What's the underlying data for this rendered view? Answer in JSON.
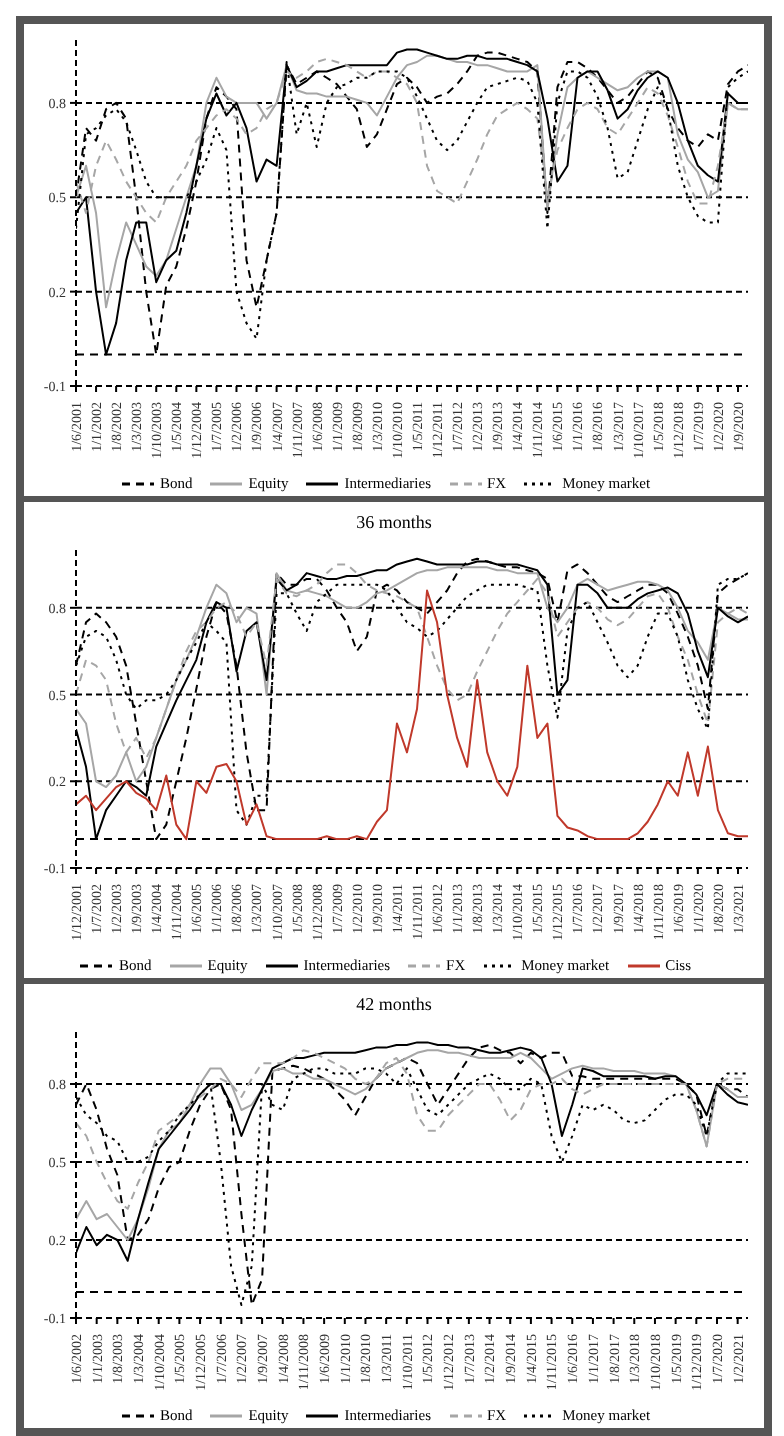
{
  "chart_data": [
    {
      "type": "line",
      "marker": "none",
      "grid": "y",
      "legend": "bottom",
      "ylim": [
        -0.1,
        1.0
      ],
      "yticks": [
        -0.1,
        0.2,
        0.5,
        0.8
      ],
      "ref_lines": [
        {
          "axis": "y",
          "value": 0
        }
      ],
      "categories": [
        "1/6/2001",
        null,
        "1/1/2002",
        null,
        "1/8/2002",
        null,
        "1/3/2003",
        null,
        "1/10/2003",
        null,
        "1/5/2004",
        null,
        "1/12/2004",
        null,
        "1/7/2005",
        null,
        "1/2/2006",
        null,
        "1/9/2006",
        null,
        "1/4/2007",
        null,
        "1/11/2007",
        null,
        "1/6/2008",
        null,
        "1/1/2009",
        null,
        "1/8/2009",
        null,
        "1/3/2010",
        null,
        "1/10/2010",
        null,
        "1/5/2011",
        null,
        "1/12/2011",
        null,
        "1/7/2012",
        null,
        "1/2/2013",
        null,
        "1/9/2013",
        null,
        "1/4/2014",
        null,
        "1/11/2014",
        null,
        "1/6/2015",
        null,
        "1/1/2016",
        null,
        "1/8/2016",
        null,
        "1/3/2017",
        null,
        "1/10/2017",
        null,
        "1/5/2018",
        null,
        "1/12/2018",
        null,
        "1/7/2019",
        null,
        "1/2/2020",
        null,
        "1/9/2020",
        null
      ],
      "series": [
        {
          "name": "Bond",
          "color": "#000000",
          "line_style": "dashed",
          "values": [
            0.5,
            0.72,
            0.68,
            0.78,
            0.8,
            0.75,
            0.5,
            0.2,
            0.0,
            0.22,
            0.28,
            0.4,
            0.55,
            0.75,
            0.85,
            0.82,
            0.78,
            0.3,
            0.15,
            0.3,
            0.45,
            0.92,
            0.86,
            0.88,
            0.9,
            0.88,
            0.86,
            0.82,
            0.78,
            0.66,
            0.7,
            0.78,
            0.86,
            0.88,
            0.85,
            0.8,
            0.82,
            0.83,
            0.86,
            0.9,
            0.95,
            0.96,
            0.96,
            0.95,
            0.94,
            0.93,
            0.9,
            0.45,
            0.85,
            0.93,
            0.93,
            0.91,
            0.88,
            0.84,
            0.8,
            0.82,
            0.86,
            0.9,
            0.88,
            0.78,
            0.72,
            0.68,
            0.66,
            0.7,
            0.68,
            0.86,
            0.9,
            0.92
          ]
        },
        {
          "name": "Equity",
          "color": "#a6a6a6",
          "line_style": "solid",
          "values": [
            0.5,
            0.6,
            0.45,
            0.15,
            0.3,
            0.42,
            0.35,
            0.28,
            0.25,
            0.3,
            0.4,
            0.5,
            0.6,
            0.8,
            0.88,
            0.82,
            0.8,
            0.8,
            0.8,
            0.75,
            0.8,
            0.92,
            0.84,
            0.83,
            0.83,
            0.82,
            0.82,
            0.82,
            0.81,
            0.8,
            0.76,
            0.82,
            0.88,
            0.92,
            0.93,
            0.95,
            0.95,
            0.94,
            0.93,
            0.93,
            0.92,
            0.92,
            0.91,
            0.9,
            0.9,
            0.9,
            0.92,
            0.46,
            0.7,
            0.85,
            0.88,
            0.9,
            0.88,
            0.86,
            0.84,
            0.85,
            0.88,
            0.9,
            0.9,
            0.88,
            0.7,
            0.62,
            0.58,
            0.5,
            0.52,
            0.8,
            0.78,
            0.78
          ]
        },
        {
          "name": "Intermediaries",
          "color": "#000000",
          "line_style": "solid",
          "values": [
            0.45,
            0.5,
            0.2,
            0.0,
            0.1,
            0.3,
            0.42,
            0.42,
            0.23,
            0.3,
            0.33,
            0.45,
            0.6,
            0.75,
            0.83,
            0.76,
            0.8,
            0.72,
            0.55,
            0.62,
            0.6,
            0.92,
            0.85,
            0.87,
            0.9,
            0.9,
            0.91,
            0.92,
            0.92,
            0.92,
            0.92,
            0.92,
            0.96,
            0.97,
            0.97,
            0.96,
            0.95,
            0.94,
            0.94,
            0.95,
            0.95,
            0.94,
            0.94,
            0.94,
            0.93,
            0.92,
            0.9,
            0.75,
            0.55,
            0.6,
            0.88,
            0.9,
            0.9,
            0.84,
            0.75,
            0.78,
            0.84,
            0.88,
            0.9,
            0.88,
            0.8,
            0.68,
            0.6,
            0.57,
            0.55,
            0.83,
            0.8,
            0.8
          ]
        },
        {
          "name": "FX",
          "color": "#a6a6a6",
          "line_style": "dashed",
          "values": [
            0.55,
            0.45,
            0.6,
            0.68,
            0.62,
            0.55,
            0.5,
            0.45,
            0.42,
            0.5,
            0.55,
            0.6,
            0.68,
            0.72,
            0.76,
            0.78,
            0.75,
            0.7,
            0.72,
            0.78,
            0.8,
            0.9,
            0.88,
            0.9,
            0.93,
            0.94,
            0.93,
            0.92,
            0.9,
            0.88,
            0.9,
            0.9,
            0.88,
            0.86,
            0.8,
            0.6,
            0.52,
            0.5,
            0.48,
            0.55,
            0.62,
            0.7,
            0.76,
            0.78,
            0.8,
            0.78,
            0.75,
            0.5,
            0.65,
            0.72,
            0.78,
            0.8,
            0.78,
            0.72,
            0.7,
            0.75,
            0.8,
            0.85,
            0.83,
            0.76,
            0.66,
            0.55,
            0.48,
            0.48,
            0.6,
            0.8,
            0.78,
            0.78
          ]
        },
        {
          "name": "Money market",
          "color": "#000000",
          "line_style": "dotted",
          "values": [
            0.4,
            0.7,
            0.72,
            0.76,
            0.78,
            0.74,
            0.65,
            0.55,
            0.5,
            0.5,
            0.5,
            0.5,
            0.55,
            0.62,
            0.72,
            0.65,
            0.2,
            0.1,
            0.05,
            0.3,
            0.45,
            0.93,
            0.7,
            0.8,
            0.66,
            0.8,
            0.85,
            0.86,
            0.88,
            0.88,
            0.9,
            0.9,
            0.9,
            0.88,
            0.82,
            0.75,
            0.68,
            0.65,
            0.68,
            0.74,
            0.8,
            0.85,
            0.86,
            0.87,
            0.88,
            0.87,
            0.8,
            0.4,
            0.8,
            0.9,
            0.9,
            0.88,
            0.82,
            0.72,
            0.56,
            0.58,
            0.68,
            0.78,
            0.85,
            0.78,
            0.6,
            0.5,
            0.44,
            0.42,
            0.42,
            0.85,
            0.88,
            0.9
          ]
        }
      ]
    },
    {
      "type": "line",
      "title": "36 months",
      "marker": "none",
      "grid": "y",
      "legend": "bottom",
      "ylim": [
        -0.1,
        1.0
      ],
      "yticks": [
        -0.1,
        0.2,
        0.5,
        0.8
      ],
      "ref_lines": [
        {
          "axis": "y",
          "value": 0
        }
      ],
      "categories": [
        "1/12/2001",
        null,
        "1/7/2002",
        null,
        "1/2/2003",
        null,
        "1/9/2003",
        null,
        "1/4/2004",
        null,
        "1/11/2004",
        null,
        "1/6/2005",
        null,
        "1/1/2006",
        null,
        "1/8/2006",
        null,
        "1/3/2007",
        null,
        "1/10/2007",
        null,
        "1/5/2008",
        null,
        "1/12/2008",
        null,
        "1/7/2009",
        null,
        "1/2/2010",
        null,
        "1/9/2010",
        null,
        "1/4/2011",
        null,
        "1/11/2011",
        null,
        "1/6/2012",
        null,
        "1/1/2013",
        null,
        "1/8/2013",
        null,
        "1/3/2014",
        null,
        "1/10/2014",
        null,
        "1/5/2015",
        null,
        "1/12/2015",
        null,
        "1/7/2016",
        null,
        "1/2/2017",
        null,
        "1/9/2017",
        null,
        "1/4/2018",
        null,
        "1/11/2018",
        null,
        "1/6/2019",
        null,
        "1/1/2020",
        null,
        "1/8/2020",
        null,
        "1/3/2021",
        null
      ],
      "series": [
        {
          "name": "Bond",
          "color": "#000000",
          "line_style": "dashed",
          "values": [
            0.6,
            0.75,
            0.78,
            0.75,
            0.7,
            0.6,
            0.4,
            0.2,
            0.0,
            0.05,
            0.2,
            0.35,
            0.52,
            0.7,
            0.82,
            0.78,
            0.6,
            0.3,
            0.1,
            0.1,
            0.92,
            0.88,
            0.88,
            0.9,
            0.9,
            0.86,
            0.8,
            0.75,
            0.65,
            0.7,
            0.86,
            0.88,
            0.86,
            0.82,
            0.8,
            0.78,
            0.82,
            0.86,
            0.92,
            0.96,
            0.97,
            0.96,
            0.95,
            0.94,
            0.94,
            0.93,
            0.92,
            0.9,
            0.75,
            0.93,
            0.95,
            0.92,
            0.88,
            0.84,
            0.82,
            0.84,
            0.86,
            0.88,
            0.88,
            0.85,
            0.78,
            0.7,
            0.6,
            0.45,
            0.85,
            0.88,
            0.9,
            0.92
          ]
        },
        {
          "name": "Equity",
          "color": "#a6a6a6",
          "line_style": "solid",
          "values": [
            0.45,
            0.4,
            0.2,
            0.18,
            0.22,
            0.3,
            0.2,
            0.25,
            0.35,
            0.45,
            0.55,
            0.62,
            0.7,
            0.8,
            0.88,
            0.85,
            0.75,
            0.8,
            0.78,
            0.5,
            0.92,
            0.86,
            0.85,
            0.86,
            0.85,
            0.84,
            0.82,
            0.8,
            0.8,
            0.82,
            0.85,
            0.86,
            0.88,
            0.9,
            0.92,
            0.93,
            0.93,
            0.94,
            0.94,
            0.94,
            0.94,
            0.94,
            0.93,
            0.93,
            0.92,
            0.92,
            0.92,
            0.8,
            0.75,
            0.8,
            0.88,
            0.9,
            0.88,
            0.86,
            0.87,
            0.88,
            0.89,
            0.89,
            0.88,
            0.86,
            0.8,
            0.72,
            0.68,
            0.62,
            0.8,
            0.78,
            0.76,
            0.76
          ]
        },
        {
          "name": "Intermediaries",
          "color": "#000000",
          "line_style": "solid",
          "values": [
            0.38,
            0.25,
            0.0,
            0.1,
            0.15,
            0.2,
            0.18,
            0.15,
            0.32,
            0.4,
            0.48,
            0.55,
            0.62,
            0.75,
            0.82,
            0.8,
            0.58,
            0.72,
            0.75,
            0.55,
            0.9,
            0.86,
            0.88,
            0.92,
            0.91,
            0.9,
            0.9,
            0.91,
            0.91,
            0.92,
            0.93,
            0.93,
            0.95,
            0.96,
            0.97,
            0.96,
            0.95,
            0.95,
            0.95,
            0.95,
            0.96,
            0.96,
            0.95,
            0.95,
            0.95,
            0.94,
            0.93,
            0.88,
            0.5,
            0.55,
            0.88,
            0.88,
            0.85,
            0.8,
            0.8,
            0.8,
            0.83,
            0.85,
            0.86,
            0.87,
            0.85,
            0.78,
            0.65,
            0.56,
            0.8,
            0.77,
            0.75,
            0.77
          ]
        },
        {
          "name": "FX",
          "color": "#a6a6a6",
          "line_style": "dashed",
          "values": [
            0.5,
            0.62,
            0.6,
            0.55,
            0.4,
            0.3,
            0.35,
            0.28,
            0.35,
            0.45,
            0.55,
            0.65,
            0.72,
            0.75,
            0.8,
            0.82,
            0.78,
            0.7,
            0.75,
            0.6,
            0.9,
            0.85,
            0.84,
            0.86,
            0.88,
            0.92,
            0.95,
            0.95,
            0.92,
            0.88,
            0.86,
            0.85,
            0.84,
            0.82,
            0.8,
            0.7,
            0.6,
            0.52,
            0.48,
            0.5,
            0.58,
            0.65,
            0.72,
            0.78,
            0.82,
            0.86,
            0.9,
            0.85,
            0.7,
            0.75,
            0.8,
            0.82,
            0.8,
            0.76,
            0.74,
            0.76,
            0.8,
            0.84,
            0.85,
            0.8,
            0.7,
            0.62,
            0.5,
            0.4,
            0.75,
            0.78,
            0.8,
            0.78
          ]
        },
        {
          "name": "Money market",
          "color": "#000000",
          "line_style": "dotted",
          "values": [
            0.6,
            0.7,
            0.72,
            0.7,
            0.62,
            0.5,
            0.45,
            0.48,
            0.48,
            0.5,
            0.55,
            0.62,
            0.68,
            0.75,
            0.72,
            0.68,
            0.1,
            0.05,
            0.15,
            0.15,
            0.85,
            0.85,
            0.78,
            0.72,
            0.82,
            0.85,
            0.88,
            0.88,
            0.88,
            0.88,
            0.88,
            0.86,
            0.8,
            0.75,
            0.73,
            0.7,
            0.72,
            0.76,
            0.8,
            0.84,
            0.86,
            0.88,
            0.88,
            0.88,
            0.88,
            0.87,
            0.86,
            0.6,
            0.42,
            0.72,
            0.8,
            0.82,
            0.75,
            0.68,
            0.6,
            0.56,
            0.6,
            0.7,
            0.78,
            0.78,
            0.7,
            0.55,
            0.45,
            0.38,
            0.88,
            0.9,
            0.9,
            0.92
          ]
        },
        {
          "name": "Ciss",
          "color": "#c0392b",
          "line_style": "solid",
          "values": [
            0.12,
            0.15,
            0.1,
            0.14,
            0.18,
            0.2,
            0.16,
            0.14,
            0.1,
            0.22,
            0.05,
            0.0,
            0.2,
            0.16,
            0.25,
            0.26,
            0.2,
            0.05,
            0.12,
            0.01,
            0.0,
            0.0,
            0.0,
            0.0,
            0.0,
            0.01,
            0.0,
            0.0,
            0.01,
            0.0,
            0.06,
            0.1,
            0.4,
            0.3,
            0.45,
            0.86,
            0.75,
            0.5,
            0.35,
            0.25,
            0.55,
            0.3,
            0.2,
            0.15,
            0.25,
            0.6,
            0.35,
            0.4,
            0.08,
            0.04,
            0.03,
            0.01,
            0.0,
            0.0,
            0.0,
            0.0,
            0.02,
            0.06,
            0.12,
            0.2,
            0.15,
            0.3,
            0.15,
            0.32,
            0.1,
            0.02,
            0.01,
            0.01
          ]
        }
      ]
    },
    {
      "type": "line",
      "title": "42 months",
      "marker": "none",
      "grid": "y",
      "legend": "bottom",
      "ylim": [
        -0.1,
        1.0
      ],
      "yticks": [
        -0.1,
        0.2,
        0.5,
        0.8
      ],
      "ref_lines": [
        {
          "axis": "y",
          "value": 0
        }
      ],
      "categories": [
        "1/6/2002",
        null,
        "1/1/2003",
        null,
        "1/8/2003",
        null,
        "1/3/2004",
        null,
        "1/10/2004",
        null,
        "1/5/2005",
        null,
        "1/12/2005",
        null,
        "1/7/2006",
        null,
        "1/2/2007",
        null,
        "1/9/2007",
        null,
        "1/4/2008",
        null,
        "1/11/2008",
        null,
        "1/6/2009",
        null,
        "1/1/2010",
        null,
        "1/8/2010",
        null,
        "1/3/2011",
        null,
        "1/10/2011",
        null,
        "1/5/2012",
        null,
        "1/12/2012",
        null,
        "1/7/2013",
        null,
        "1/2/2014",
        null,
        "1/9/2014",
        null,
        "1/4/2015",
        null,
        "1/11/2015",
        null,
        "1/6/2016",
        null,
        "1/1/2017",
        null,
        "1/8/2017",
        null,
        "1/3/2018",
        null,
        "1/10/2018",
        null,
        "1/5/2019",
        null,
        "1/12/2019",
        null,
        "1/7/2020",
        null,
        "1/2/2021",
        null
      ],
      "series": [
        {
          "name": "Bond",
          "color": "#000000",
          "line_style": "dashed",
          "values": [
            0.72,
            0.8,
            0.7,
            0.55,
            0.45,
            0.2,
            0.22,
            0.28,
            0.4,
            0.48,
            0.5,
            0.62,
            0.72,
            0.78,
            0.8,
            0.7,
            0.3,
            -0.05,
            0.05,
            0.85,
            0.86,
            0.87,
            0.86,
            0.84,
            0.82,
            0.78,
            0.74,
            0.68,
            0.75,
            0.82,
            0.86,
            0.88,
            0.9,
            0.88,
            0.8,
            0.72,
            0.78,
            0.84,
            0.9,
            0.94,
            0.95,
            0.93,
            0.92,
            0.88,
            0.92,
            0.9,
            0.92,
            0.92,
            0.83,
            0.83,
            0.82,
            0.82,
            0.82,
            0.82,
            0.82,
            0.82,
            0.82,
            0.82,
            0.82,
            0.8,
            0.76,
            0.6,
            0.8,
            0.78,
            0.78,
            0.75
          ]
        },
        {
          "name": "Equity",
          "color": "#a6a6a6",
          "line_style": "solid",
          "values": [
            0.28,
            0.35,
            0.28,
            0.3,
            0.25,
            0.2,
            0.28,
            0.4,
            0.55,
            0.62,
            0.65,
            0.72,
            0.8,
            0.86,
            0.86,
            0.8,
            0.7,
            0.72,
            0.78,
            0.85,
            0.86,
            0.84,
            0.84,
            0.82,
            0.82,
            0.8,
            0.78,
            0.76,
            0.78,
            0.82,
            0.86,
            0.88,
            0.9,
            0.92,
            0.93,
            0.93,
            0.92,
            0.92,
            0.91,
            0.9,
            0.9,
            0.9,
            0.9,
            0.92,
            0.9,
            0.86,
            0.82,
            0.84,
            0.86,
            0.87,
            0.86,
            0.86,
            0.85,
            0.85,
            0.85,
            0.84,
            0.84,
            0.84,
            0.83,
            0.8,
            0.7,
            0.56,
            0.8,
            0.78,
            0.75,
            0.75
          ]
        },
        {
          "name": "Intermediaries",
          "color": "#000000",
          "line_style": "solid",
          "values": [
            0.15,
            0.25,
            0.18,
            0.22,
            0.2,
            0.12,
            0.28,
            0.42,
            0.55,
            0.6,
            0.65,
            0.7,
            0.76,
            0.8,
            0.8,
            0.72,
            0.6,
            0.7,
            0.78,
            0.86,
            0.88,
            0.9,
            0.9,
            0.91,
            0.92,
            0.92,
            0.92,
            0.92,
            0.93,
            0.94,
            0.94,
            0.95,
            0.95,
            0.96,
            0.96,
            0.95,
            0.95,
            0.94,
            0.94,
            0.93,
            0.92,
            0.92,
            0.93,
            0.94,
            0.93,
            0.9,
            0.8,
            0.6,
            0.72,
            0.86,
            0.85,
            0.83,
            0.83,
            0.83,
            0.83,
            0.83,
            0.82,
            0.83,
            0.83,
            0.8,
            0.76,
            0.68,
            0.8,
            0.76,
            0.73,
            0.72
          ]
        },
        {
          "name": "FX",
          "color": "#a6a6a6",
          "line_style": "dashed",
          "values": [
            0.65,
            0.6,
            0.5,
            0.42,
            0.35,
            0.32,
            0.42,
            0.5,
            0.62,
            0.65,
            0.68,
            0.72,
            0.75,
            0.78,
            0.82,
            0.8,
            0.75,
            0.82,
            0.88,
            0.88,
            0.88,
            0.9,
            0.93,
            0.92,
            0.9,
            0.88,
            0.86,
            0.82,
            0.8,
            0.82,
            0.88,
            0.9,
            0.84,
            0.68,
            0.62,
            0.62,
            0.68,
            0.72,
            0.76,
            0.8,
            0.8,
            0.74,
            0.66,
            0.7,
            0.78,
            0.8,
            0.8,
            0.82,
            0.78,
            0.76,
            0.78,
            0.8,
            0.8,
            0.8,
            0.8,
            0.8,
            0.8,
            0.8,
            0.8,
            0.8,
            0.7,
            0.56,
            0.8,
            0.82,
            0.82,
            0.82
          ]
        },
        {
          "name": "Money market",
          "color": "#000000",
          "line_style": "dotted",
          "values": [
            0.75,
            0.68,
            0.65,
            0.6,
            0.58,
            0.5,
            0.5,
            0.52,
            0.58,
            0.62,
            0.68,
            0.72,
            0.76,
            0.8,
            0.5,
            0.1,
            -0.05,
            0.1,
            0.8,
            0.72,
            0.7,
            0.82,
            0.84,
            0.86,
            0.86,
            0.84,
            0.84,
            0.84,
            0.86,
            0.86,
            0.84,
            0.8,
            0.86,
            0.78,
            0.7,
            0.68,
            0.72,
            0.76,
            0.8,
            0.82,
            0.84,
            0.82,
            0.78,
            0.78,
            0.82,
            0.8,
            0.6,
            0.5,
            0.6,
            0.72,
            0.7,
            0.72,
            0.7,
            0.66,
            0.65,
            0.66,
            0.7,
            0.74,
            0.76,
            0.76,
            0.72,
            0.6,
            0.8,
            0.84,
            0.84,
            0.84
          ]
        }
      ]
    }
  ]
}
